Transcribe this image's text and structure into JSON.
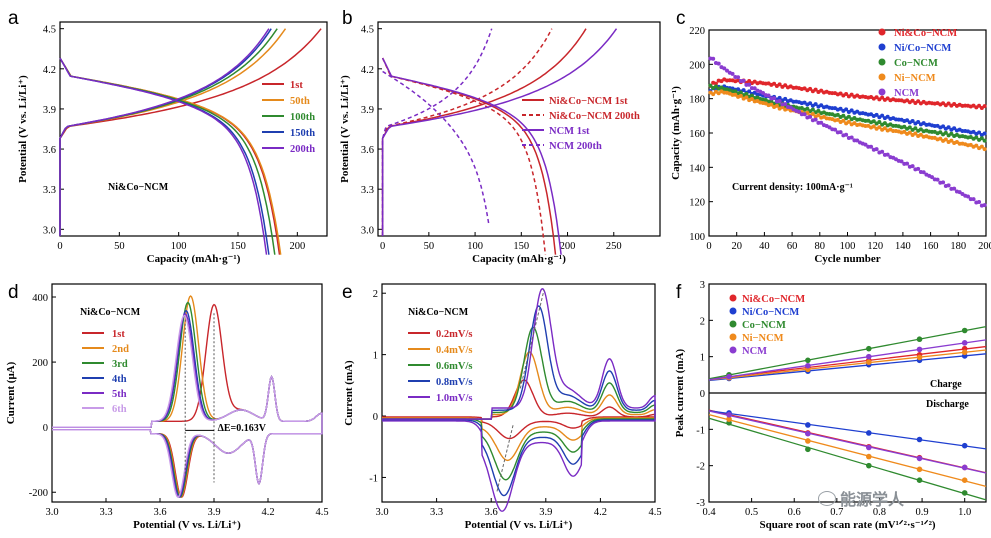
{
  "figure": {
    "title": "",
    "watermark": "能源学人"
  },
  "chart_data": [
    {
      "panel": "a",
      "type": "line",
      "xlabel": "Capacity (mAh·g⁻¹)",
      "ylabel": "Potential (V vs. Li/Li⁺)",
      "xlim": [
        0,
        225
      ],
      "ylim": [
        2.95,
        4.55
      ],
      "xticks": [
        "0",
        "50",
        "100",
        "150",
        "200"
      ],
      "yticks": [
        "3.0",
        "3.3",
        "3.6",
        "3.9",
        "4.2",
        "4.5"
      ],
      "annotation": "Ni&Co−NCM",
      "series": [
        {
          "name": "1st",
          "color": "#c8262b",
          "charge_end": 220,
          "discharge_end": 185
        },
        {
          "name": "50th",
          "color": "#e58a1c",
          "charge_end": 190,
          "discharge_end": 186
        },
        {
          "name": "100th",
          "color": "#2f8a2f",
          "charge_end": 183,
          "discharge_end": 181
        },
        {
          "name": "150th",
          "color": "#1f3fb0",
          "charge_end": 178,
          "discharge_end": 176
        },
        {
          "name": "200th",
          "color": "#7a2bc4",
          "charge_end": 176,
          "discharge_end": 174
        }
      ]
    },
    {
      "panel": "b",
      "type": "line",
      "xlabel": "Capacity (mAh·g⁻¹)",
      "ylabel": "Potential (V vs. Li/Li⁺)",
      "xlim": [
        -5,
        300
      ],
      "ylim": [
        2.95,
        4.55
      ],
      "xticks": [
        "0",
        "50",
        "100",
        "150",
        "200",
        "250"
      ],
      "yticks": [
        "3.0",
        "3.3",
        "3.6",
        "3.9",
        "4.2",
        "4.5"
      ],
      "series": [
        {
          "name": "Ni&Co−NCM  1st",
          "color": "#c8262b",
          "dash": false,
          "charge_end": 220,
          "discharge_end": 187
        },
        {
          "name": "Ni&Co−NCM  200th",
          "color": "#c8262b",
          "dash": true,
          "charge_end": 183,
          "discharge_end": 176
        },
        {
          "name": "NCM  1st",
          "color": "#7a2bc4",
          "dash": false,
          "charge_end": 253,
          "discharge_end": 193
        },
        {
          "name": "NCM  200th",
          "color": "#7a2bc4",
          "dash": true,
          "charge_end": 118,
          "discharge_end": 115
        }
      ]
    },
    {
      "panel": "c",
      "type": "scatter",
      "xlabel": "Cycle number",
      "ylabel": "Capacity (mAh·g⁻¹)",
      "xlim": [
        0,
        200
      ],
      "ylim": [
        100,
        220
      ],
      "xticks": [
        "0",
        "20",
        "40",
        "60",
        "80",
        "100",
        "120",
        "140",
        "160",
        "180",
        "200"
      ],
      "yticks": [
        "100",
        "120",
        "140",
        "160",
        "180",
        "200",
        "220"
      ],
      "annotation": "Current density: 100mA·g⁻¹",
      "series": [
        {
          "name": "Ni&Co−NCM",
          "color": "#e0262b",
          "points": [
            [
              1,
              188
            ],
            [
              10,
              191
            ],
            [
              40,
              189
            ],
            [
              100,
              182
            ],
            [
              150,
              178
            ],
            [
              200,
              175
            ]
          ]
        },
        {
          "name": "Ni/Co−NCM",
          "color": "#1f3fd0",
          "points": [
            [
              1,
              185
            ],
            [
              10,
              187
            ],
            [
              50,
              180
            ],
            [
              100,
              173
            ],
            [
              150,
              166
            ],
            [
              200,
              159
            ]
          ]
        },
        {
          "name": "Co−NCM",
          "color": "#2f8a2f",
          "points": [
            [
              1,
              187
            ],
            [
              10,
              186
            ],
            [
              50,
              177
            ],
            [
              100,
              169
            ],
            [
              150,
              162
            ],
            [
              200,
              156
            ]
          ]
        },
        {
          "name": "Ni−NCM",
          "color": "#ef8a1c",
          "points": [
            [
              1,
              183
            ],
            [
              10,
              184
            ],
            [
              50,
              175
            ],
            [
              100,
              166
            ],
            [
              150,
              159
            ],
            [
              200,
              151
            ]
          ]
        },
        {
          "name": "NCM",
          "color": "#8a3cd0",
          "points": [
            [
              1,
              204
            ],
            [
              10,
              198
            ],
            [
              30,
              187
            ],
            [
              70,
              170
            ],
            [
              100,
              158
            ],
            [
              150,
              139
            ],
            [
              200,
              117
            ]
          ]
        }
      ]
    },
    {
      "panel": "d",
      "type": "line",
      "xlabel": "Potential (V vs. Li/Li⁺)",
      "ylabel": "Current (μA)",
      "xlim": [
        3.0,
        4.5
      ],
      "ylim": [
        -230,
        440
      ],
      "xticks": [
        "3.0",
        "3.3",
        "3.6",
        "3.9",
        "4.2",
        "4.5"
      ],
      "yticks": [
        "-200",
        "0",
        "200",
        "400"
      ],
      "annotation": "Ni&Co−NCM",
      "delta_label": "ΔE=0.163V",
      "series": [
        {
          "name": "1st",
          "color": "#c8262b",
          "oxidation_peak": [
            3.9,
            355
          ]
        },
        {
          "name": "2nd",
          "color": "#e58a1c",
          "oxidation_peak": [
            3.77,
            385
          ]
        },
        {
          "name": "3rd",
          "color": "#2f8a2f",
          "oxidation_peak": [
            3.755,
            365
          ]
        },
        {
          "name": "4th",
          "color": "#1f3fb0",
          "oxidation_peak": [
            3.745,
            340
          ]
        },
        {
          "name": "5th",
          "color": "#7a2bc4",
          "oxidation_peak": [
            3.74,
            330
          ]
        },
        {
          "name": "6th",
          "color": "#c89be8",
          "oxidation_peak": [
            3.735,
            325
          ]
        }
      ]
    },
    {
      "panel": "e",
      "type": "line",
      "xlabel": "Potential (V vs. Li/Li⁺)",
      "ylabel": "Current (mA)",
      "xlim": [
        3.0,
        4.5
      ],
      "ylim": [
        -1.4,
        2.15
      ],
      "xticks": [
        "3.0",
        "3.3",
        "3.6",
        "3.9",
        "4.2",
        "4.5"
      ],
      "yticks": [
        "-1",
        "0",
        "1",
        "2"
      ],
      "annotation": "Ni&Co−NCM",
      "series": [
        {
          "name": "0.2mV/s",
          "color": "#c8262b",
          "oxidation_peak": [
            3.78,
            0.6
          ],
          "reduction_peak": [
            3.7,
            -0.28
          ]
        },
        {
          "name": "0.4mV/s",
          "color": "#e58a1c",
          "oxidation_peak": [
            3.81,
            1.02
          ],
          "reduction_peak": [
            3.69,
            -0.55
          ]
        },
        {
          "name": "0.6mV/s",
          "color": "#2f8a2f",
          "oxidation_peak": [
            3.83,
            1.38
          ],
          "reduction_peak": [
            3.68,
            -0.78
          ]
        },
        {
          "name": "0.8mV/s",
          "color": "#1f3fb0",
          "oxidation_peak": [
            3.86,
            1.68
          ],
          "reduction_peak": [
            3.67,
            -0.95
          ]
        },
        {
          "name": "1.0mV/s",
          "color": "#7a2bc4",
          "oxidation_peak": [
            3.88,
            1.9
          ],
          "reduction_peak": [
            3.66,
            -1.12
          ]
        }
      ]
    },
    {
      "panel": "f",
      "type": "scatter",
      "xlabel": "Square root of scan rate (mV¹ᐟ²·s⁻¹ᐟ²)",
      "ylabel": "Peak current (mA)",
      "xlim": [
        0.4,
        1.05
      ],
      "ylim": [
        -3.0,
        3.0
      ],
      "xticks": [
        "0.4",
        "0.5",
        "0.6",
        "0.7",
        "0.8",
        "0.9",
        "1.0"
      ],
      "yticks": [
        "-3",
        "-2",
        "-1",
        "0",
        "1",
        "2",
        "3"
      ],
      "labels": {
        "charge": "Charge",
        "discharge": "Discharge"
      },
      "x": [
        0.447,
        0.632,
        0.775,
        0.894,
        1.0
      ],
      "series": [
        {
          "name": "Ni&Co−NCM",
          "color": "#e0262b",
          "charge": [
            0.45,
            0.7,
            0.9,
            1.05,
            1.22
          ],
          "discharge": [
            -0.58,
            -1.1,
            -1.48,
            -1.78,
            -2.05
          ]
        },
        {
          "name": "Ni/Co−NCM",
          "color": "#1f3fd0",
          "charge": [
            0.4,
            0.6,
            0.78,
            0.9,
            1.02
          ],
          "discharge": [
            -0.55,
            -0.88,
            -1.1,
            -1.28,
            -1.45
          ]
        },
        {
          "name": "Co−NCM",
          "color": "#2f8a2f",
          "charge": [
            0.5,
            0.9,
            1.22,
            1.48,
            1.72
          ],
          "discharge": [
            -0.82,
            -1.55,
            -2.0,
            -2.4,
            -2.75
          ]
        },
        {
          "name": "Ni−NCM",
          "color": "#ef8a1c",
          "charge": [
            0.42,
            0.65,
            0.85,
            0.98,
            1.12
          ],
          "discharge": [
            -0.72,
            -1.32,
            -1.75,
            -2.1,
            -2.4
          ]
        },
        {
          "name": "NCM",
          "color": "#8a3cd0",
          "charge": [
            0.45,
            0.75,
            1.0,
            1.2,
            1.38
          ],
          "discharge": [
            -0.6,
            -1.12,
            -1.5,
            -1.8,
            -2.05
          ]
        }
      ]
    }
  ]
}
